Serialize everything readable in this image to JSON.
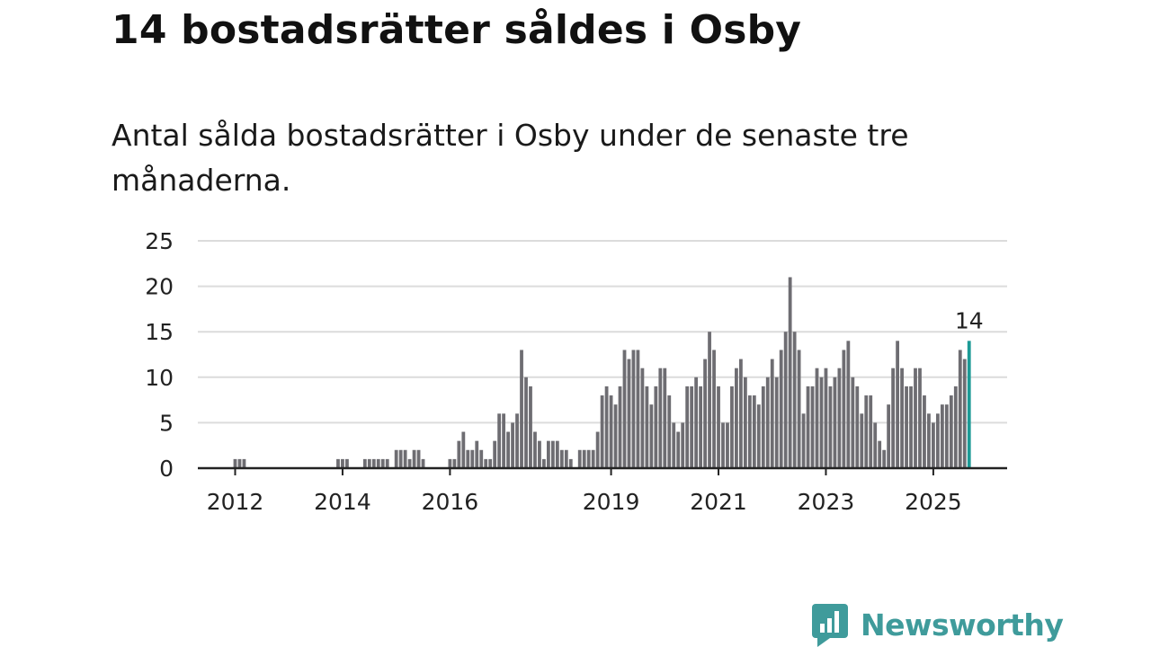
{
  "title": "14 bostadsrätter såldes i Osby",
  "subtitle": "Antal sålda bostadsrätter i Osby under de senaste tre månaderna.",
  "brand": {
    "name": "Newsworthy",
    "icon": "newsworthy-logo-icon",
    "color": "#3f9b9b"
  },
  "chart_data": {
    "type": "bar",
    "title": "14 bostadsrätter såldes i Osby",
    "xlabel": "",
    "ylabel": "",
    "ylim": [
      0,
      25
    ],
    "yticks": [
      "0",
      "5",
      "10",
      "15",
      "20",
      "25"
    ],
    "xticks": [
      {
        "label": "2012",
        "index": 0
      },
      {
        "label": "2014",
        "index": 24
      },
      {
        "label": "2016",
        "index": 48
      },
      {
        "label": "2019",
        "index": 84
      },
      {
        "label": "2021",
        "index": 108
      },
      {
        "label": "2023",
        "index": 132
      },
      {
        "label": "2025",
        "index": 156
      }
    ],
    "bar_color": "#6e6d72",
    "highlight_color": "#1c9a96",
    "highlight_label": "14",
    "values": [
      1,
      1,
      1,
      0,
      0,
      0,
      0,
      0,
      0,
      0,
      0,
      0,
      0,
      0,
      0,
      0,
      0,
      0,
      0,
      0,
      0,
      0,
      0,
      1,
      1,
      1,
      0,
      0,
      0,
      1,
      1,
      1,
      1,
      1,
      1,
      0,
      2,
      2,
      2,
      1,
      2,
      2,
      1,
      0,
      0,
      0,
      0,
      0,
      1,
      1,
      3,
      4,
      2,
      2,
      3,
      2,
      1,
      1,
      3,
      6,
      6,
      4,
      5,
      6,
      13,
      10,
      9,
      4,
      3,
      1,
      3,
      3,
      3,
      2,
      2,
      1,
      0,
      2,
      2,
      2,
      2,
      4,
      8,
      9,
      8,
      7,
      9,
      13,
      12,
      13,
      13,
      11,
      9,
      7,
      9,
      11,
      11,
      8,
      5,
      4,
      5,
      9,
      9,
      10,
      9,
      12,
      15,
      13,
      9,
      5,
      5,
      9,
      11,
      12,
      10,
      8,
      8,
      7,
      9,
      10,
      12,
      10,
      13,
      15,
      21,
      15,
      13,
      6,
      9,
      9,
      11,
      10,
      11,
      9,
      10,
      11,
      13,
      14,
      10,
      9,
      6,
      8,
      8,
      5,
      3,
      2,
      7,
      11,
      14,
      11,
      9,
      9,
      11,
      11,
      8,
      6,
      5,
      6,
      7,
      7,
      8,
      9,
      13,
      12,
      14
    ]
  }
}
